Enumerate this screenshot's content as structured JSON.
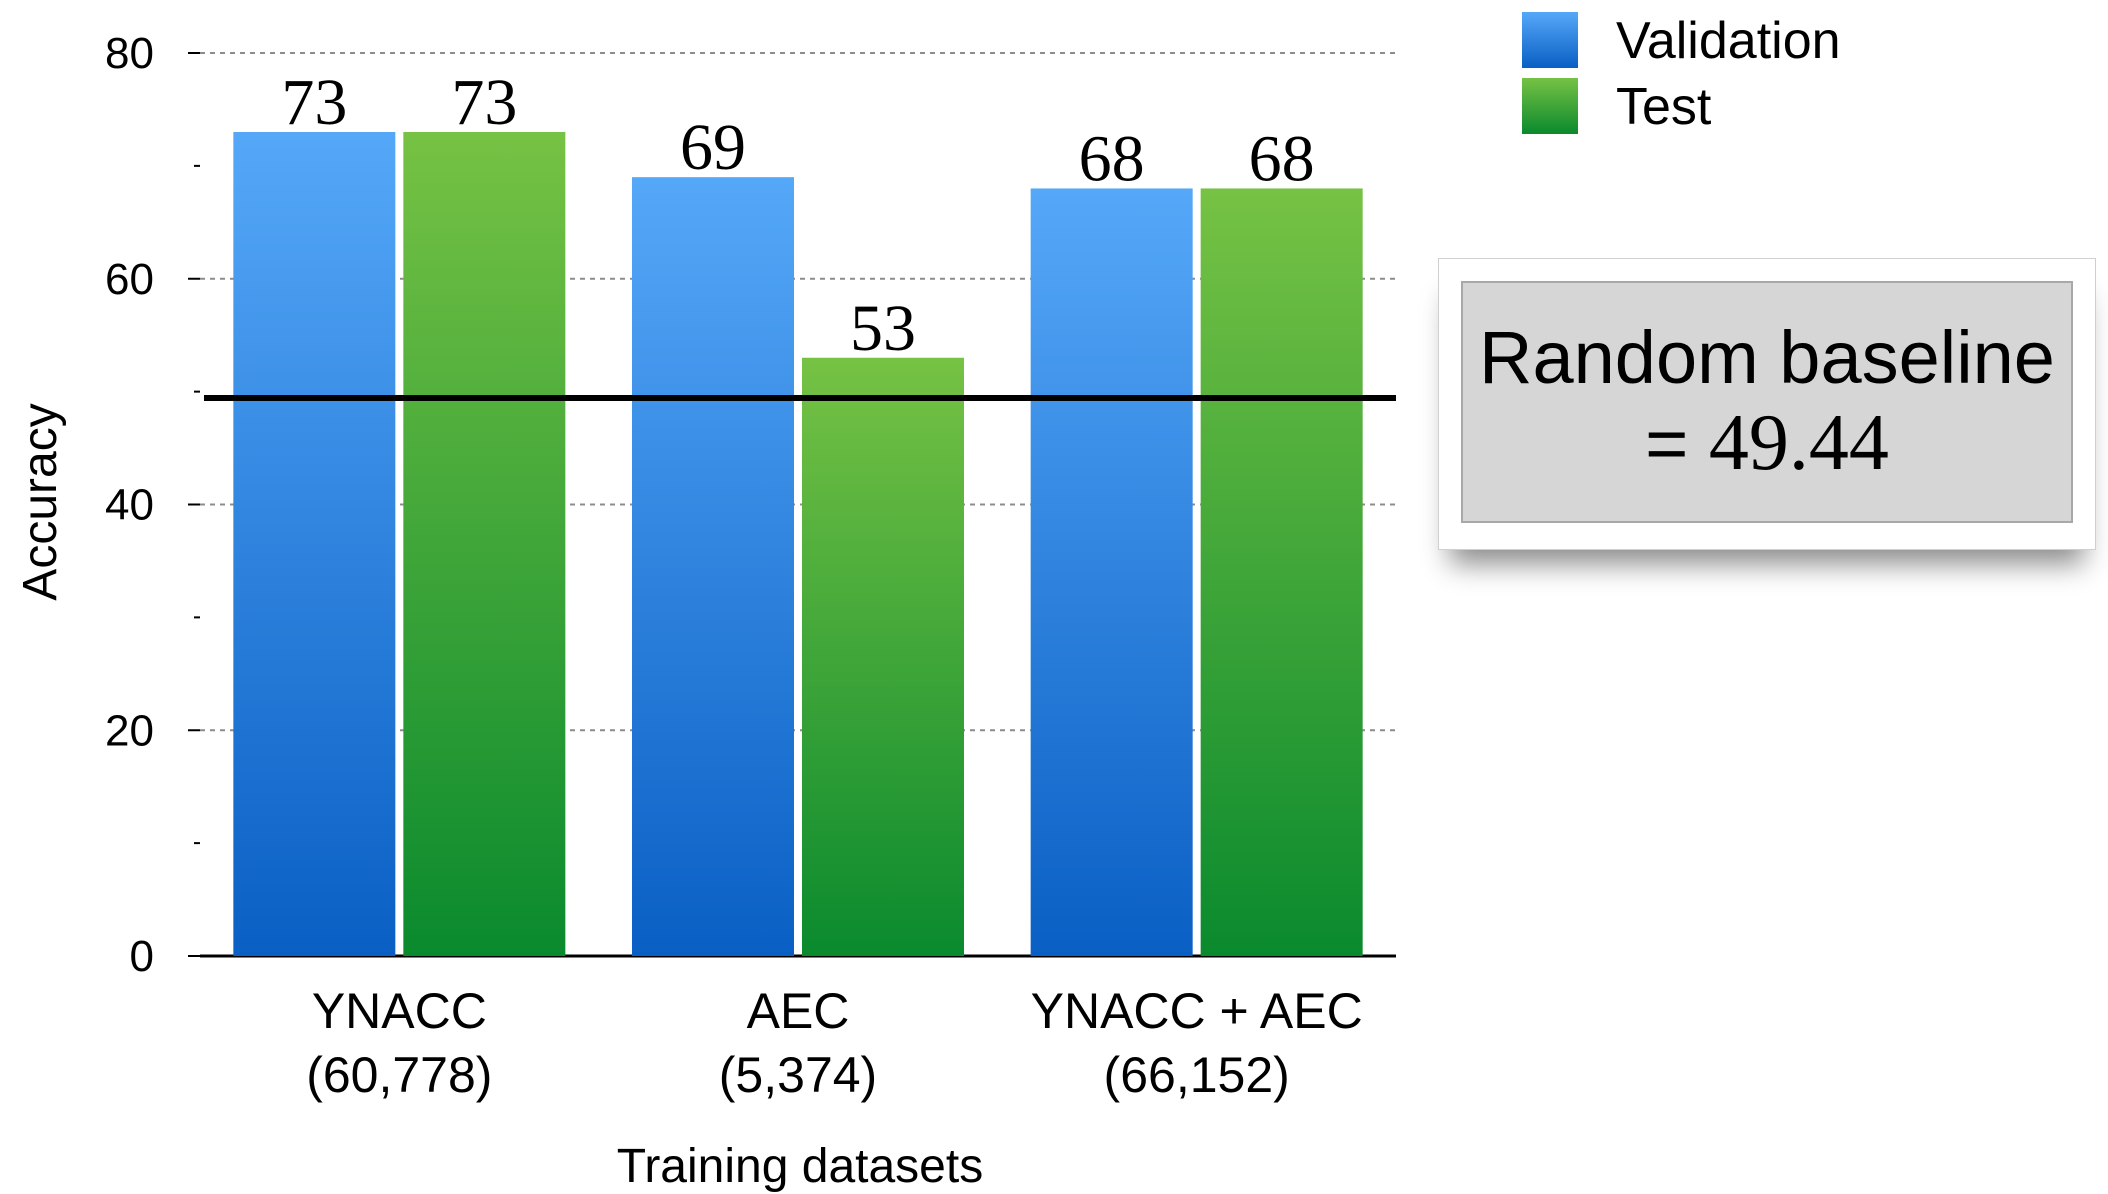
{
  "chart_data": {
    "type": "bar",
    "categories": [
      "YNACC\n(60,778)",
      "AEC\n(5,374)",
      "YNACC + AEC\n(66,152)"
    ],
    "category_lines": [
      [
        "YNACC",
        "(60,778)"
      ],
      [
        "AEC",
        "(5,374)"
      ],
      [
        "YNACC + AEC",
        "(66,152)"
      ]
    ],
    "series": [
      {
        "name": "Validation",
        "values": [
          73,
          69,
          68
        ],
        "labels": [
          "73",
          "69",
          "68"
        ],
        "color": "#2f86e6"
      },
      {
        "name": "Test",
        "values": [
          73,
          53,
          68
        ],
        "labels": [
          "73",
          "53",
          "68"
        ],
        "color": "#3fa83c"
      }
    ],
    "xlabel": "Training datasets",
    "ylabel": "Accuracy",
    "ylim": [
      0,
      80
    ],
    "yticks": [
      0,
      20,
      40,
      60,
      80
    ],
    "grid": true,
    "legend_position": "top-right",
    "reference_line": {
      "value": 49.44,
      "color": "#000000"
    },
    "annotation": {
      "line1": "Random baseline",
      "line2_prefix": "=",
      "line2_value": "49.44"
    }
  }
}
